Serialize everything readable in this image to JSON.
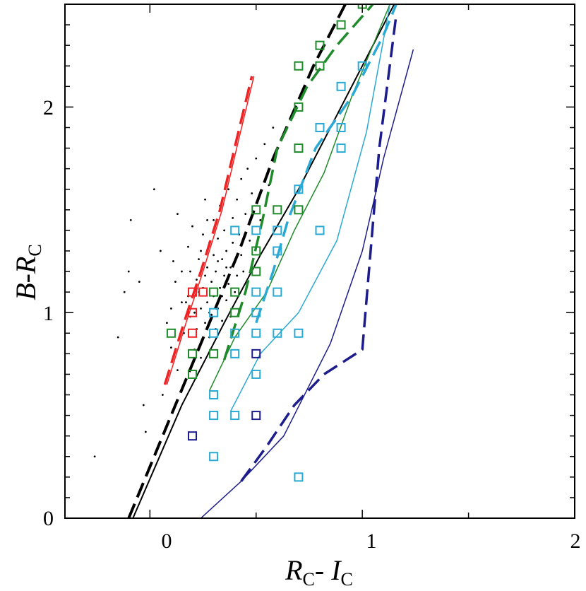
{
  "chart_data": {
    "type": "scatter",
    "title": "",
    "xlabel": {
      "main": "R",
      "sub1": "C",
      "sep": "- ",
      "main2": "I",
      "sub2": "C"
    },
    "ylabel": {
      "main": "B",
      "sep": "-",
      "main2": "R",
      "sub": "C"
    },
    "xlim": [
      -0.4,
      2.0
    ],
    "ylim": [
      0,
      2.5
    ],
    "x_ticks": [
      0,
      1,
      2
    ],
    "y_ticks": [
      0,
      1,
      2
    ],
    "x_ticks_labels": [
      "0",
      "1",
      "2"
    ],
    "y_ticks_labels": [
      "0",
      "1",
      "2"
    ],
    "grid": false,
    "colors": {
      "red": "#ee2222",
      "black": "#000000",
      "green": "#1e8a2a",
      "cyan": "#29a9d4",
      "navy": "#1c1c8c"
    },
    "series": [
      {
        "name": "red-dashed",
        "color": "red",
        "style": "dashed",
        "width": 3.5,
        "x": [
          0.07,
          0.16,
          0.24,
          0.33,
          0.41,
          0.48
        ],
        "y": [
          0.65,
          0.95,
          1.2,
          1.5,
          1.85,
          2.15
        ]
      },
      {
        "name": "red-solid",
        "color": "red",
        "style": "solid",
        "width": 1.5,
        "x": [
          0.08,
          0.17,
          0.25,
          0.34,
          0.42,
          0.49
        ],
        "y": [
          0.65,
          0.95,
          1.2,
          1.5,
          1.85,
          2.15
        ]
      },
      {
        "name": "black-dashed",
        "color": "black",
        "style": "dashed",
        "width": 4,
        "x": [
          -0.1,
          0.1,
          0.28,
          0.42,
          0.58,
          0.77,
          0.92
        ],
        "y": [
          0,
          0.5,
          0.95,
          1.3,
          1.75,
          2.2,
          2.5
        ]
      },
      {
        "name": "black-solid",
        "color": "black",
        "style": "solid",
        "width": 2,
        "x": [
          -0.08,
          0.15,
          0.35,
          0.52,
          0.7,
          0.9,
          1.15
        ],
        "y": [
          0,
          0.55,
          0.95,
          1.28,
          1.6,
          2.0,
          2.5
        ]
      },
      {
        "name": "green-dashed",
        "color": "green",
        "style": "dashed",
        "width": 3.5,
        "x": [
          0.35,
          0.45,
          0.53,
          0.6,
          0.74,
          0.88,
          1.05
        ],
        "y": [
          0.77,
          1.1,
          1.45,
          1.8,
          2.1,
          2.3,
          2.5
        ]
      },
      {
        "name": "green-solid",
        "color": "green",
        "style": "solid",
        "width": 1.5,
        "x": [
          0.28,
          0.4,
          0.55,
          0.68,
          0.82,
          0.95,
          1.13
        ],
        "y": [
          0.62,
          0.88,
          1.1,
          1.4,
          1.68,
          2.05,
          2.5
        ]
      },
      {
        "name": "cyan-dashed",
        "color": "cyan",
        "style": "dashed",
        "width": 3.5,
        "x": [
          0.5,
          0.58,
          0.65,
          0.78,
          0.95,
          1.1,
          1.16
        ],
        "y": [
          0.95,
          1.2,
          1.45,
          1.8,
          2.05,
          2.35,
          2.5
        ]
      },
      {
        "name": "cyan-solid",
        "color": "cyan",
        "style": "solid",
        "width": 1.5,
        "x": [
          0.38,
          0.52,
          0.7,
          0.88,
          1.02,
          1.13
        ],
        "y": [
          0.52,
          0.8,
          1.0,
          1.35,
          1.88,
          2.5
        ]
      },
      {
        "name": "navy-dashed",
        "color": "navy",
        "style": "dashed",
        "width": 3.5,
        "x": [
          0.43,
          0.55,
          0.68,
          0.82,
          1.0,
          1.08,
          1.16
        ],
        "y": [
          0.18,
          0.35,
          0.55,
          0.7,
          0.82,
          1.8,
          2.45
        ]
      },
      {
        "name": "navy-solid",
        "color": "navy",
        "style": "solid",
        "width": 1.5,
        "x": [
          0.24,
          0.43,
          0.63,
          0.85,
          1.0,
          1.1,
          1.24
        ],
        "y": [
          0.0,
          0.18,
          0.4,
          0.85,
          1.3,
          1.75,
          2.28
        ]
      }
    ],
    "squares": [
      {
        "color": "red",
        "points": [
          [
            0.2,
            1.1
          ],
          [
            0.2,
            1.0
          ],
          [
            0.2,
            0.9
          ],
          [
            0.25,
            1.1
          ]
        ]
      },
      {
        "color": "green",
        "points": [
          [
            0.1,
            0.9
          ],
          [
            0.2,
            0.8
          ],
          [
            0.2,
            0.7
          ],
          [
            0.3,
            0.8
          ],
          [
            0.3,
            1.1
          ],
          [
            0.4,
            1.1
          ],
          [
            0.4,
            1.0
          ],
          [
            0.5,
            1.5
          ],
          [
            0.5,
            1.3
          ],
          [
            0.5,
            1.2
          ],
          [
            0.6,
            1.5
          ],
          [
            0.7,
            1.5
          ],
          [
            0.7,
            1.8
          ],
          [
            0.7,
            2.0
          ],
          [
            0.7,
            2.2
          ],
          [
            0.8,
            2.2
          ],
          [
            0.8,
            2.3
          ],
          [
            0.9,
            2.4
          ],
          [
            1.0,
            2.5
          ]
        ]
      },
      {
        "color": "cyan",
        "points": [
          [
            0.3,
            1.0
          ],
          [
            0.3,
            0.9
          ],
          [
            0.3,
            0.6
          ],
          [
            0.3,
            0.5
          ],
          [
            0.3,
            0.3
          ],
          [
            0.4,
            1.4
          ],
          [
            0.4,
            0.9
          ],
          [
            0.4,
            0.8
          ],
          [
            0.4,
            0.5
          ],
          [
            0.5,
            1.4
          ],
          [
            0.5,
            1.1
          ],
          [
            0.5,
            1.0
          ],
          [
            0.5,
            0.9
          ],
          [
            0.5,
            0.7
          ],
          [
            0.6,
            1.4
          ],
          [
            0.6,
            1.3
          ],
          [
            0.6,
            1.1
          ],
          [
            0.6,
            0.9
          ],
          [
            0.7,
            1.6
          ],
          [
            0.7,
            0.9
          ],
          [
            0.7,
            0.2
          ],
          [
            0.8,
            1.9
          ],
          [
            0.8,
            1.4
          ],
          [
            0.9,
            2.1
          ],
          [
            0.9,
            1.9
          ],
          [
            0.9,
            1.8
          ],
          [
            1.0,
            2.2
          ]
        ]
      },
      {
        "color": "navy",
        "points": [
          [
            0.2,
            0.4
          ],
          [
            0.5,
            0.8
          ],
          [
            0.5,
            0.5
          ]
        ]
      }
    ],
    "dots": [
      [
        -0.26,
        0.3
      ],
      [
        -0.15,
        0.88
      ],
      [
        -0.12,
        1.1
      ],
      [
        -0.1,
        1.2
      ],
      [
        -0.09,
        1.45
      ],
      [
        -0.05,
        1.15
      ],
      [
        -0.03,
        0.55
      ],
      [
        -0.02,
        0.42
      ],
      [
        0.02,
        1.6
      ],
      [
        0.05,
        1.3
      ],
      [
        0.06,
        0.6
      ],
      [
        0.08,
        0.95
      ],
      [
        0.1,
        1.02
      ],
      [
        0.1,
        0.83
      ],
      [
        0.12,
        1.15
      ],
      [
        0.13,
        1.48
      ],
      [
        0.13,
        0.72
      ],
      [
        0.15,
        1.2
      ],
      [
        0.16,
        0.9
      ],
      [
        0.17,
        1.05
      ],
      [
        0.18,
        1.32
      ],
      [
        0.19,
        0.98
      ],
      [
        0.2,
        1.42
      ],
      [
        0.21,
        0.82
      ],
      [
        0.22,
        1.16
      ],
      [
        0.22,
        0.92
      ],
      [
        0.23,
        1.26
      ],
      [
        0.24,
        1.02
      ],
      [
        0.24,
        0.78
      ],
      [
        0.25,
        1.38
      ],
      [
        0.25,
        1.12
      ],
      [
        0.26,
        0.95
      ],
      [
        0.26,
        1.55
      ],
      [
        0.27,
        1.22
      ],
      [
        0.27,
        1.05
      ],
      [
        0.28,
        0.88
      ],
      [
        0.28,
        1.34
      ],
      [
        0.29,
        1.15
      ],
      [
        0.29,
        0.99
      ],
      [
        0.3,
        1.45
      ],
      [
        0.3,
        1.28
      ],
      [
        0.3,
        1.08
      ],
      [
        0.31,
        0.92
      ],
      [
        0.31,
        1.2
      ],
      [
        0.32,
        1.36
      ],
      [
        0.32,
        1.02
      ],
      [
        0.33,
        1.12
      ],
      [
        0.33,
        1.52
      ],
      [
        0.34,
        1.26
      ],
      [
        0.34,
        0.96
      ],
      [
        0.35,
        1.18
      ],
      [
        0.35,
        1.4
      ],
      [
        0.36,
        1.06
      ],
      [
        0.36,
        1.3
      ],
      [
        0.37,
        1.6
      ],
      [
        0.37,
        1.14
      ],
      [
        0.38,
        1.22
      ],
      [
        0.38,
        0.98
      ],
      [
        0.39,
        1.34
      ],
      [
        0.39,
        1.46
      ],
      [
        0.4,
        1.1
      ],
      [
        0.4,
        1.25
      ],
      [
        0.41,
        1.55
      ],
      [
        0.41,
        1.18
      ],
      [
        0.42,
        1.38
      ],
      [
        0.43,
        1.65
      ],
      [
        0.43,
        1.28
      ],
      [
        0.44,
        1.2
      ],
      [
        0.45,
        1.48
      ],
      [
        0.46,
        1.7
      ],
      [
        0.47,
        1.35
      ],
      [
        0.48,
        1.58
      ],
      [
        0.5,
        1.75
      ],
      [
        0.52,
        1.45
      ],
      [
        0.54,
        1.82
      ],
      [
        0.56,
        1.62
      ],
      [
        0.58,
        1.9
      ],
      [
        0.18,
        1.08
      ],
      [
        0.21,
        1.0
      ],
      [
        0.23,
        1.1
      ],
      [
        0.26,
        1.18
      ],
      [
        0.28,
        1.0
      ],
      [
        0.32,
        1.25
      ],
      [
        0.34,
        1.08
      ],
      [
        0.36,
        1.22
      ],
      [
        0.24,
        1.3
      ],
      [
        0.19,
        1.2
      ],
      [
        0.15,
        1.05
      ],
      [
        0.11,
        1.25
      ],
      [
        0.27,
        1.45
      ]
    ]
  }
}
